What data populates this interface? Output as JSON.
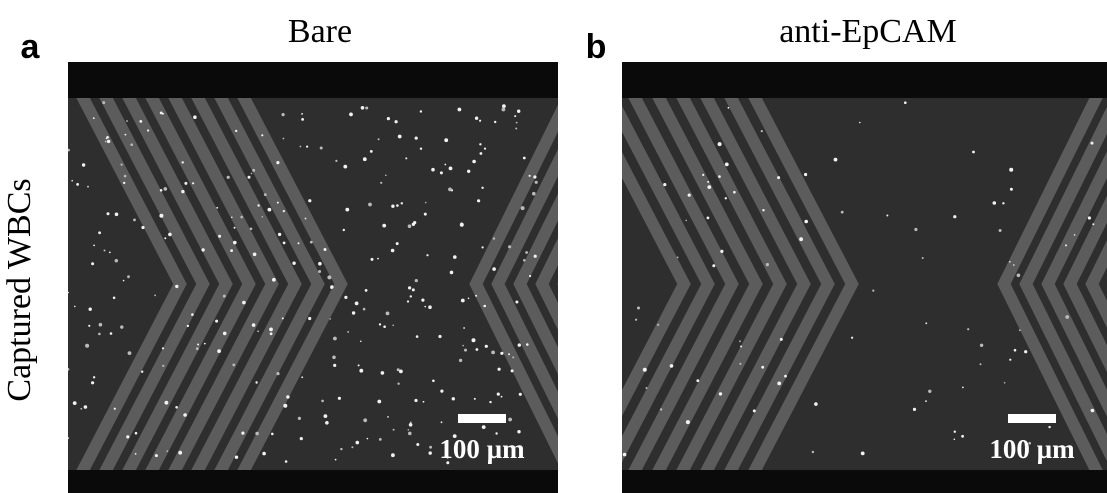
{
  "row_label": "Captured WBCs",
  "panels": [
    {
      "label": "a",
      "title": "Bare",
      "scale_bar": "100 µm"
    },
    {
      "label": "b",
      "title": "anti-EpCAM",
      "scale_bar": "100 µm"
    }
  ]
}
